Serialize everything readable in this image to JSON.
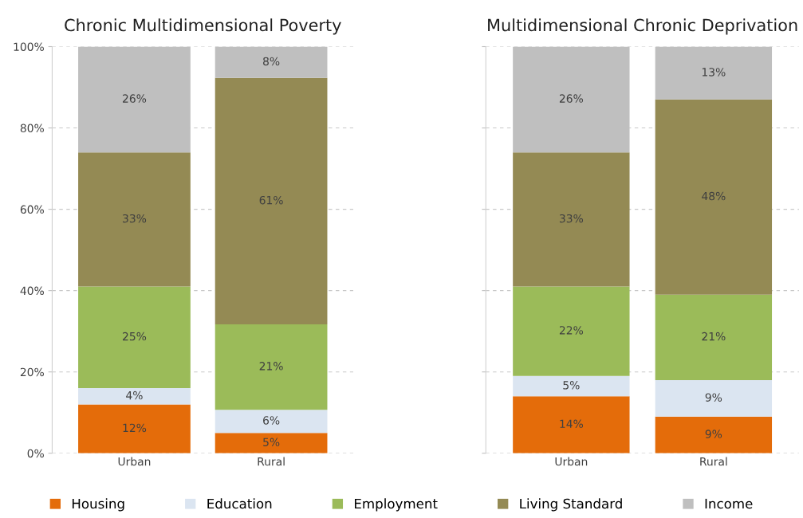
{
  "chart_data": [
    {
      "type": "bar",
      "title": "Chronic Multidimensional Poverty",
      "categories": [
        "Urban",
        "Rural"
      ],
      "stacked": true,
      "ylim": [
        0,
        100
      ],
      "yticks": [
        {
          "value": 0,
          "label": "0%"
        },
        {
          "value": 20,
          "label": "20%"
        },
        {
          "value": 40,
          "label": "40%"
        },
        {
          "value": 60,
          "label": "60%"
        },
        {
          "value": 80,
          "label": "80%"
        },
        {
          "value": 100,
          "label": "100%"
        }
      ],
      "grid": "y",
      "legend": "bottom",
      "series": [
        {
          "name": "Housing",
          "color": "#e46c0a",
          "values": [
            12,
            5
          ],
          "value_labels": [
            "12%",
            "5%"
          ]
        },
        {
          "name": "Education",
          "color": "#dbe5f1",
          "values": [
            4,
            5.7
          ],
          "value_labels": [
            "4%",
            "6%"
          ]
        },
        {
          "name": "Employment",
          "color": "#9bbb59",
          "values": [
            25,
            21
          ],
          "value_labels": [
            "25%",
            "21%"
          ]
        },
        {
          "name": "Living Standard",
          "color": "#948a54",
          "values": [
            33,
            60.6
          ],
          "value_labels": [
            "33%",
            "61%"
          ]
        },
        {
          "name": "Income",
          "color": "#bfbfbf",
          "values": [
            26,
            7.7
          ],
          "value_labels": [
            "26%",
            "8%"
          ]
        }
      ]
    },
    {
      "type": "bar",
      "title": "Multidimensional Chronic Deprivation",
      "categories": [
        "Urban",
        "Rural"
      ],
      "stacked": true,
      "ylim": [
        0,
        100
      ],
      "yticks": [
        {
          "value": 0,
          "label": null
        },
        {
          "value": 20,
          "label": null
        },
        {
          "value": 40,
          "label": null
        },
        {
          "value": 60,
          "label": null
        },
        {
          "value": 80,
          "label": null
        },
        {
          "value": 100,
          "label": null
        }
      ],
      "grid": "y",
      "tick_labels": "x",
      "series": [
        {
          "name": "Housing",
          "color": "#e46c0a",
          "values": [
            14,
            9
          ],
          "value_labels": [
            "14%",
            "9%"
          ]
        },
        {
          "name": "Education",
          "color": "#dbe5f1",
          "values": [
            5,
            9
          ],
          "value_labels": [
            "5%",
            "9%"
          ]
        },
        {
          "name": "Employment",
          "color": "#9bbb59",
          "values": [
            22,
            21
          ],
          "value_labels": [
            "22%",
            "21%"
          ]
        },
        {
          "name": "Living Standard",
          "color": "#948a54",
          "values": [
            33,
            48
          ],
          "value_labels": [
            "33%",
            "48%"
          ]
        },
        {
          "name": "Income",
          "color": "#bfbfbf",
          "values": [
            26,
            13
          ],
          "value_labels": [
            "26%",
            "13%"
          ]
        }
      ]
    }
  ]
}
